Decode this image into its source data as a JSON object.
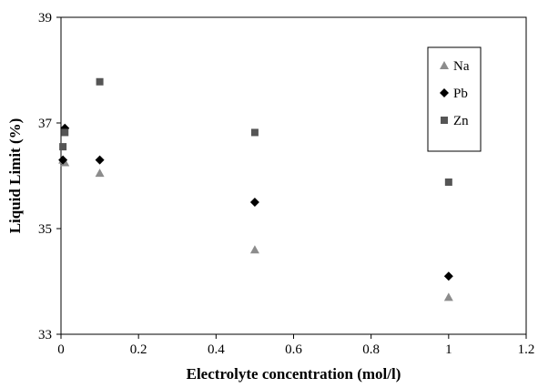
{
  "chart_data": {
    "type": "scatter",
    "title": "",
    "xlabel": "Electrolyte concentration (mol/l)",
    "ylabel": "Liquid Limit (%)",
    "xlim": [
      0,
      1.2
    ],
    "ylim": [
      33,
      39
    ],
    "xticks": [
      0,
      0.2,
      0.4,
      0.6,
      0.8,
      1,
      1.2
    ],
    "yticks": [
      33,
      35,
      37,
      39
    ],
    "xtick_labels": [
      "0",
      "0.2",
      "0.4",
      "0.6",
      "0.8",
      "1",
      "1.2"
    ],
    "ytick_labels": [
      "33",
      "35",
      "37",
      "39"
    ],
    "grid": false,
    "legend_position": "top-right",
    "series": [
      {
        "name": "Na",
        "marker": "triangle",
        "color": "#8c8c8c",
        "x": [
          0.005,
          0.01,
          0.1,
          0.5,
          1
        ],
        "y": [
          36.3,
          36.25,
          36.05,
          34.6,
          33.7
        ]
      },
      {
        "name": "Pb",
        "marker": "diamond",
        "color": "#000000",
        "x": [
          0.005,
          0.01,
          0.1,
          0.5,
          1
        ],
        "y": [
          36.3,
          36.9,
          36.3,
          35.5,
          34.1
        ]
      },
      {
        "name": "Zn",
        "marker": "square",
        "color": "#555555",
        "x": [
          0.005,
          0.01,
          0.1,
          0.5,
          1
        ],
        "y": [
          36.55,
          36.82,
          37.78,
          36.82,
          35.88
        ]
      }
    ]
  }
}
